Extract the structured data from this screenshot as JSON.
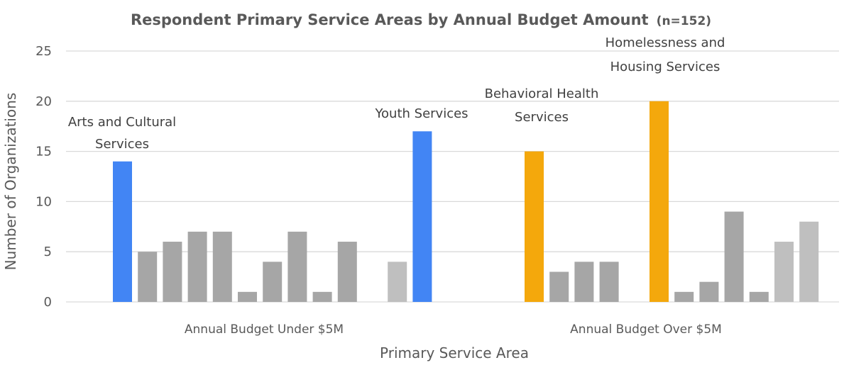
{
  "chart_data": {
    "type": "bar",
    "title": "Respondent Primary Service Areas by Annual Budget Amount",
    "title_suffix": "(n=152)",
    "xlabel": "Primary Service Area",
    "ylabel": "Number of Organizations",
    "ylim": [
      0,
      25
    ],
    "yticks": [
      0,
      5,
      10,
      15,
      20,
      25
    ],
    "grid": true,
    "legend": "none",
    "groups": [
      {
        "name": "Annual Budget Under $5M",
        "values": [
          14,
          5,
          6,
          7,
          7,
          1,
          4,
          7,
          1,
          6,
          null,
          4,
          17
        ],
        "colors": [
          "#4285f4",
          "#a6a6a6",
          "#a6a6a6",
          "#a6a6a6",
          "#a6a6a6",
          "#a6a6a6",
          "#a6a6a6",
          "#a6a6a6",
          "#a6a6a6",
          "#a6a6a6",
          null,
          "#bfbfbf",
          "#4285f4"
        ]
      },
      {
        "name": "Annual Budget Over $5M",
        "values": [
          15,
          3,
          4,
          4,
          null,
          20,
          1,
          2,
          9,
          1,
          6,
          8
        ],
        "colors": [
          "#f4a80c",
          "#a6a6a6",
          "#a6a6a6",
          "#a6a6a6",
          null,
          "#f4a80c",
          "#a6a6a6",
          "#a6a6a6",
          "#a6a6a6",
          "#a6a6a6",
          "#bfbfbf",
          "#bfbfbf"
        ]
      }
    ],
    "annotations": [
      {
        "group": 0,
        "bar": 0,
        "lines": [
          "Arts and Cultural",
          "Services"
        ]
      },
      {
        "group": 0,
        "bar": 12,
        "lines": [
          "Youth Services"
        ]
      },
      {
        "group": 1,
        "bar": 0,
        "lines": [
          "Behavioral Health",
          "Services"
        ]
      },
      {
        "group": 1,
        "bar": 5,
        "lines": [
          "Homelessness and",
          "Housing Services"
        ]
      }
    ],
    "colors": {
      "highlight_under": "#4285f4",
      "highlight_over": "#f4a80c",
      "other": "#a6a6a6",
      "other_light": "#bfbfbf",
      "grid": "#d9d9d9",
      "text": "#595959"
    }
  }
}
